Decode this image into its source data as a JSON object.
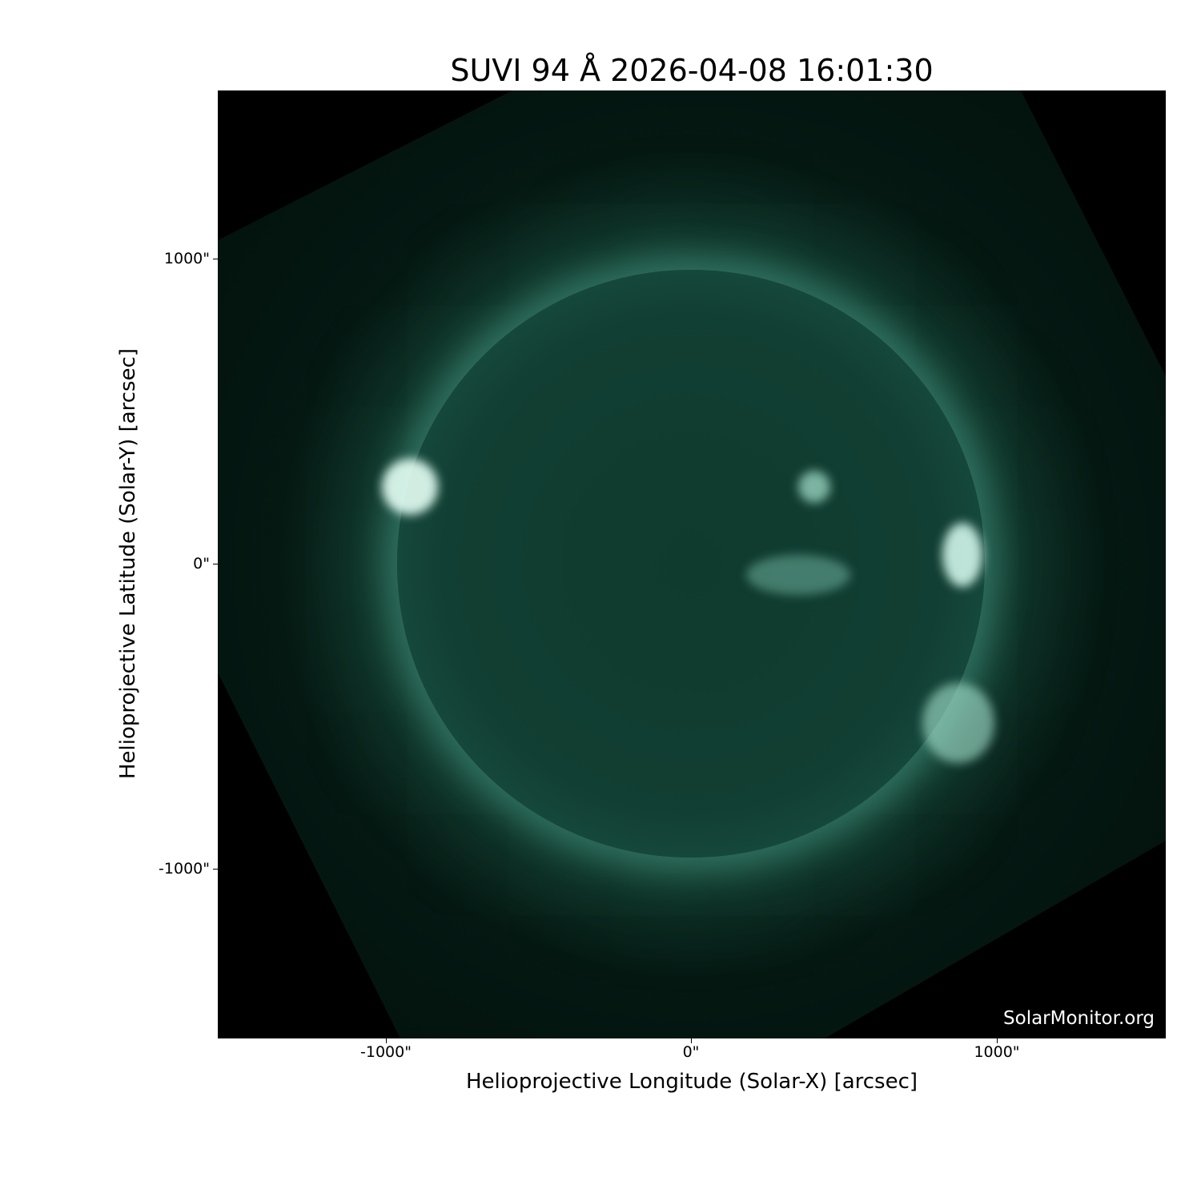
{
  "title": "SUVI 94 Å 2026-04-08 16:01:30",
  "watermark": "SolarMonitor.org",
  "axes": {
    "xlabel": "Helioprojective Longitude (Solar-X) [arcsec]",
    "ylabel": "Helioprojective Latitude (Solar-Y) [arcsec]",
    "xticks": [
      "-1000\"",
      "0\"",
      "1000\""
    ],
    "yticks": [
      "1000\"",
      "0\"",
      "-1000\""
    ]
  },
  "colors": {
    "colormap_mid": "#1a5547",
    "colormap_bright": "#e6fff7",
    "background": "#000000"
  }
}
